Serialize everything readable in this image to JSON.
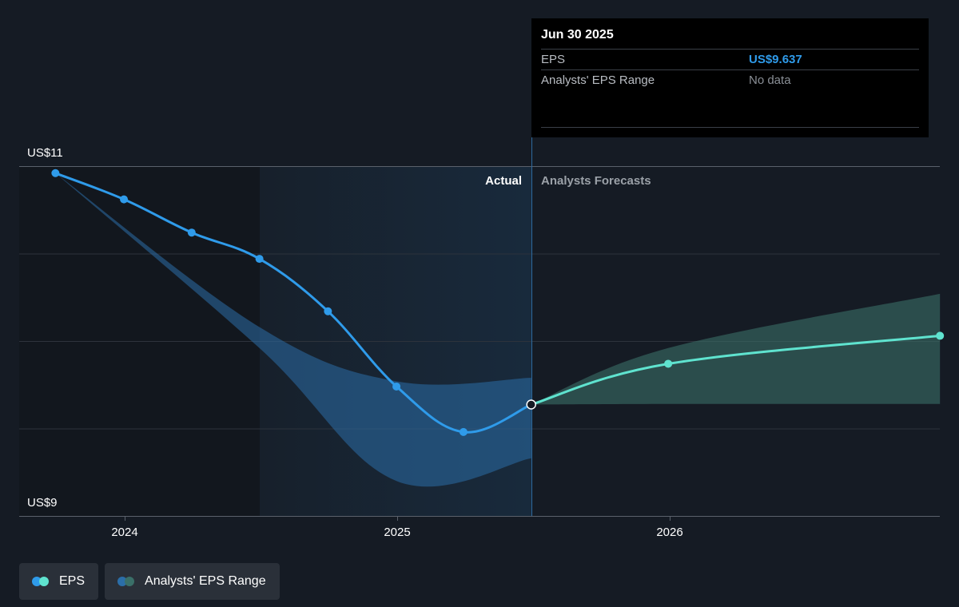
{
  "chart_data": {
    "type": "line",
    "y_axis": {
      "top_label": "US$11",
      "bottom_label": "US$9",
      "ylim": [
        9,
        11
      ]
    },
    "x_axis": {
      "tick_labels": [
        "2024",
        "2025",
        "2026"
      ]
    },
    "sections": {
      "actual_label": "Actual",
      "forecast_label": "Analysts Forecasts"
    },
    "series": [
      {
        "name": "EPS",
        "kind": "actual",
        "color": "#2f9bea",
        "points": [
          {
            "x": "2023-09-30",
            "y": 10.96
          },
          {
            "x": "2023-12-31",
            "y": 10.81
          },
          {
            "x": "2024-03-31",
            "y": 10.62
          },
          {
            "x": "2024-06-30",
            "y": 10.47
          },
          {
            "x": "2024-09-30",
            "y": 10.17
          },
          {
            "x": "2024-12-31",
            "y": 9.74
          },
          {
            "x": "2025-03-31",
            "y": 9.48
          },
          {
            "x": "2025-06-30",
            "y": 9.637
          }
        ]
      },
      {
        "name": "EPS",
        "kind": "forecast",
        "color": "#5fe3cf",
        "points": [
          {
            "x": "2025-06-30",
            "y": 9.637
          },
          {
            "x": "2025-12-31",
            "y": 9.87
          },
          {
            "x": "2026-12-31",
            "y": 10.03
          }
        ]
      }
    ],
    "ranges": [
      {
        "name": "Analysts' EPS Range",
        "kind": "actual",
        "color": "#2b6ea8",
        "upper": [
          {
            "x": "2023-09-30",
            "y": 10.96
          },
          {
            "x": "2024-06-30",
            "y": 10.08
          },
          {
            "x": "2024-12-31",
            "y": 9.77
          },
          {
            "x": "2025-06-30",
            "y": 9.79
          }
        ],
        "lower": [
          {
            "x": "2023-09-30",
            "y": 10.96
          },
          {
            "x": "2024-06-30",
            "y": 9.96
          },
          {
            "x": "2024-12-31",
            "y": 9.2
          },
          {
            "x": "2025-06-30",
            "y": 9.33
          }
        ]
      },
      {
        "name": "Analysts' EPS Range",
        "kind": "forecast",
        "color": "#3a6f68",
        "upper": [
          {
            "x": "2025-06-30",
            "y": 9.637
          },
          {
            "x": "2025-12-31",
            "y": 9.96
          },
          {
            "x": "2026-12-31",
            "y": 10.27
          }
        ],
        "lower": [
          {
            "x": "2025-06-30",
            "y": 9.637
          },
          {
            "x": "2025-12-31",
            "y": 9.64
          },
          {
            "x": "2026-12-31",
            "y": 9.64
          }
        ]
      }
    ],
    "grid": true
  },
  "tooltip": {
    "date": "Jun 30 2025",
    "rows": [
      {
        "label": "EPS",
        "value": "US$9.637"
      },
      {
        "label": "Analysts' EPS Range",
        "value": "No data"
      }
    ]
  },
  "legend": {
    "items": [
      {
        "label": "EPS",
        "colors": [
          "#2f9bea",
          "#5fe3cf"
        ]
      },
      {
        "label": "Analysts' EPS Range",
        "colors": [
          "#2b6ea8",
          "#3a6f68"
        ]
      }
    ]
  }
}
